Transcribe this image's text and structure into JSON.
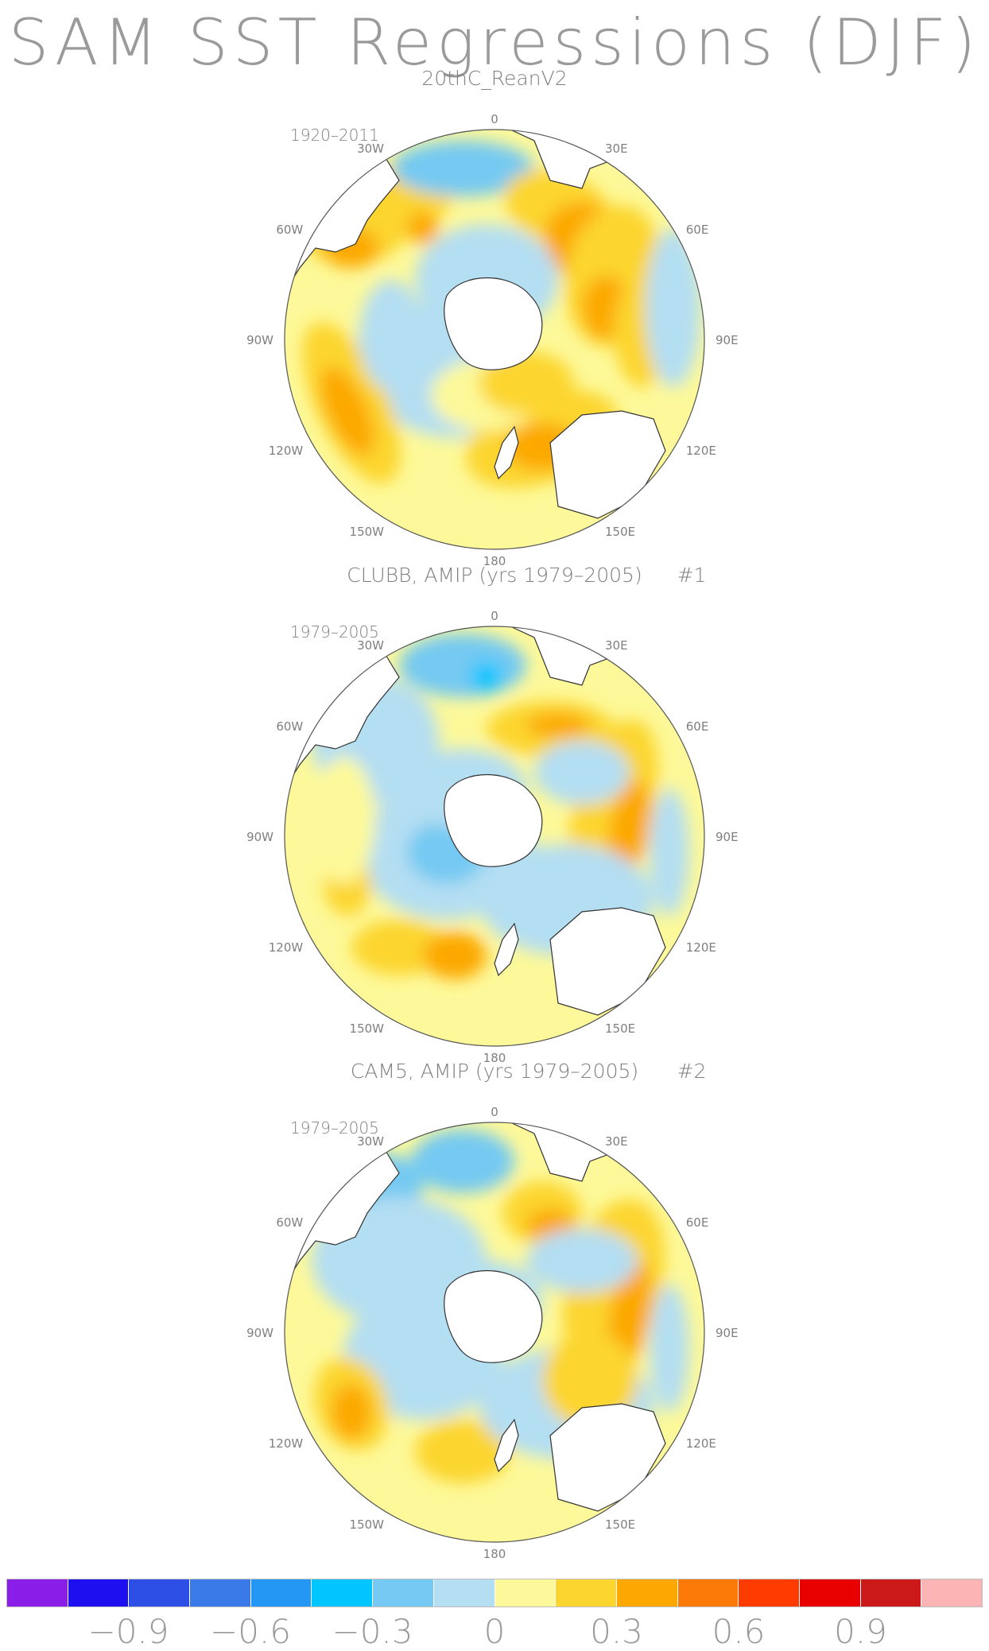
{
  "title": "SAM SST Regressions (DJF)",
  "panels": [
    {
      "title": "20thC_ReanV2",
      "number": "",
      "period": "1920–2011",
      "lon_labels": {
        "0": "0",
        "30E": "30E",
        "60E": "60E",
        "90E": "90E",
        "120E": "120E",
        "150E": "150E",
        "180": "180",
        "150W": "150W",
        "120W": "120W",
        "90W": "90W",
        "60W": "60W",
        "30W": "30W"
      }
    },
    {
      "title": "CLUBB, AMIP (yrs 1979–2005)",
      "number": "#1",
      "period": "1979–2005",
      "lon_labels": {
        "0": "0",
        "30E": "30E",
        "60E": "60E",
        "90E": "90E",
        "120E": "120E",
        "150E": "150E",
        "180": "180",
        "150W": "150W",
        "120W": "120W",
        "90W": "90W",
        "60W": "60W",
        "30W": "30W"
      }
    },
    {
      "title": "CAM5, AMIP (yrs 1979–2005)",
      "number": "#2",
      "period": "1979–2005",
      "lon_labels": {
        "0": "0",
        "30E": "30E",
        "60E": "60E",
        "90E": "90E",
        "120E": "120E",
        "150E": "150E",
        "180": "180",
        "150W": "150W",
        "120W": "120W",
        "90W": "90W",
        "60W": "60W",
        "30W": "30W"
      }
    }
  ],
  "colorbar": {
    "colors": [
      "#8a1ee8",
      "#1e0ff0",
      "#2e4fe6",
      "#3a7ae8",
      "#2497f5",
      "#00c5ff",
      "#75c9f2",
      "#b4def2",
      "#fdf99a",
      "#fcd52e",
      "#fca800",
      "#fc7b08",
      "#ff3c00",
      "#e80000",
      "#cb1919",
      "#fcb4b4"
    ],
    "tick_labels": [
      "−0.9",
      "−0.6",
      "−0.3",
      "0",
      "0.3",
      "0.6",
      "0.9"
    ]
  },
  "colors": {
    "land": "#ffffff",
    "coast": "#333333",
    "text": "#7f7f7f"
  }
}
